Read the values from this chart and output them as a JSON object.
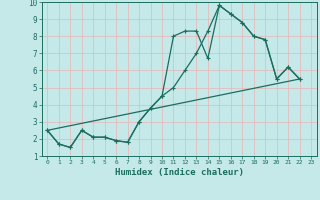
{
  "xlabel": "Humidex (Indice chaleur)",
  "xlim": [
    -0.5,
    23.5
  ],
  "ylim": [
    1,
    10
  ],
  "xticks": [
    0,
    1,
    2,
    3,
    4,
    5,
    6,
    7,
    8,
    9,
    10,
    11,
    12,
    13,
    14,
    15,
    16,
    17,
    18,
    19,
    20,
    21,
    22,
    23
  ],
  "yticks": [
    1,
    2,
    3,
    4,
    5,
    6,
    7,
    8,
    9,
    10
  ],
  "bg_color": "#c5e8e8",
  "grid_color": "#e8b4b4",
  "line_color": "#1a6e60",
  "line1_x": [
    0,
    1,
    2,
    3,
    4,
    5,
    6,
    7,
    8,
    9,
    10,
    11,
    12,
    13,
    14,
    15,
    16,
    17,
    18,
    19,
    20,
    21,
    22
  ],
  "line1_y": [
    2.5,
    1.7,
    1.5,
    2.5,
    2.1,
    2.1,
    1.9,
    1.8,
    3.0,
    3.8,
    4.5,
    8.0,
    8.3,
    8.3,
    6.7,
    9.8,
    9.3,
    8.8,
    8.0,
    7.8,
    5.5,
    6.2,
    5.5
  ],
  "line2_x": [
    0,
    1,
    2,
    3,
    4,
    5,
    6,
    7,
    8,
    9,
    10,
    11,
    12,
    13,
    14,
    15,
    16,
    17,
    18,
    19,
    20,
    21,
    22
  ],
  "line2_y": [
    2.5,
    1.7,
    1.5,
    2.5,
    2.1,
    2.1,
    1.9,
    1.8,
    3.0,
    3.8,
    4.5,
    5.0,
    6.0,
    7.0,
    8.3,
    9.8,
    9.3,
    8.8,
    8.0,
    7.8,
    5.5,
    6.2,
    5.5
  ],
  "line3_x": [
    0,
    22
  ],
  "line3_y": [
    2.5,
    5.5
  ],
  "line4_x": [
    0,
    22
  ],
  "line4_y": [
    2.5,
    5.5
  ],
  "marker_size": 3.5,
  "linewidth": 0.9
}
